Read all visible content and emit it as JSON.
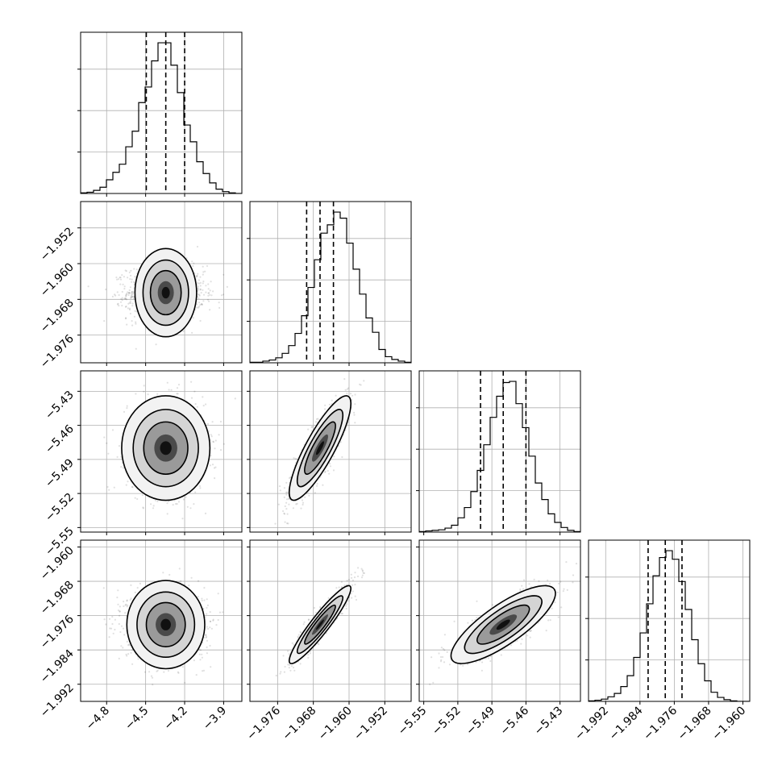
{
  "chart_data": {
    "type": "corner",
    "grid": true,
    "parameters": [
      {
        "ticks": [
          -4.8,
          -4.5,
          -4.2,
          -3.9
        ],
        "tick_labels": [
          "−4.8",
          "−4.5",
          "−4.2",
          "−3.9"
        ],
        "xlim": [
          -5.0,
          -3.76
        ],
        "quantiles": [
          -4.495,
          -4.345,
          -4.2
        ]
      },
      {
        "ticks": [
          -1.976,
          -1.968,
          -1.96,
          -1.952
        ],
        "tick_labels": [
          "−1.976",
          "−1.968",
          "−1.960",
          "−1.952"
        ],
        "xlim": [
          -1.9822,
          -1.9461
        ],
        "quantiles": [
          -1.9695,
          -1.9665,
          -1.9635
        ]
      },
      {
        "ticks": [
          -5.55,
          -5.52,
          -5.49,
          -5.46,
          -5.43
        ],
        "tick_labels": [
          "−5.55",
          "−5.52",
          "−5.49",
          "−5.46",
          "−5.43"
        ],
        "xlim": [
          -5.554,
          -5.412
        ],
        "quantiles": [
          -5.5,
          -5.48,
          -5.46
        ]
      },
      {
        "ticks": [
          -1.992,
          -1.984,
          -1.976,
          -1.968,
          -1.96
        ],
        "tick_labels": [
          "−1.992",
          "−1.984",
          "−1.976",
          "−1.968",
          "−1.960"
        ],
        "xlim": [
          -1.996,
          -1.9584
        ],
        "quantiles": [
          -1.9821,
          -1.9781,
          -1.9742
        ]
      }
    ],
    "histograms": [
      [
        1,
        2,
        5,
        10,
        22,
        34,
        47,
        75,
        100,
        146,
        171,
        213,
        242,
        242,
        206,
        162,
        110,
        83,
        51,
        32,
        17,
        7,
        3,
        1,
        0
      ],
      [
        1,
        1,
        3,
        5,
        9,
        17,
        31,
        53,
        85,
        136,
        186,
        234,
        249,
        272,
        261,
        216,
        169,
        124,
        81,
        55,
        24,
        11,
        6,
        3,
        1
      ],
      [
        1,
        2,
        3,
        4,
        7,
        12,
        25,
        43,
        71,
        108,
        153,
        201,
        238,
        262,
        264,
        225,
        183,
        133,
        86,
        57,
        32,
        17,
        8,
        3,
        1
      ],
      [
        1,
        2,
        4,
        8,
        14,
        26,
        45,
        77,
        120,
        171,
        220,
        252,
        264,
        249,
        210,
        161,
        108,
        66,
        36,
        16,
        7,
        3,
        1,
        0,
        0
      ]
    ],
    "correlations": {
      "1-0": 0.0,
      "2-0": 0.0,
      "2-1": 0.85,
      "3-0": 0.0,
      "3-1": 0.93,
      "3-2": 0.8
    }
  }
}
